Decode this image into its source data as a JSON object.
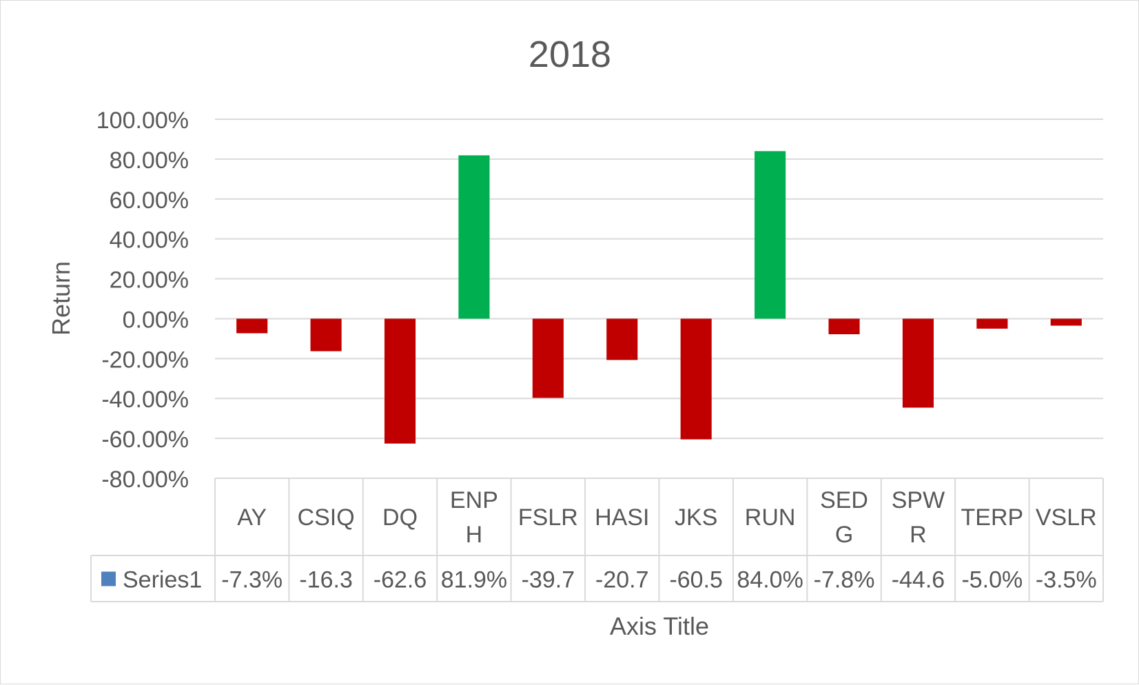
{
  "chart_data": {
    "type": "bar",
    "title": "2018",
    "ylabel": "Return",
    "xlabel": "Axis Title",
    "ylim": [
      -0.8,
      1.0
    ],
    "ytick_step": 0.2,
    "ytick_labels": [
      "100.00%",
      "80.00%",
      "60.00%",
      "40.00%",
      "20.00%",
      "0.00%",
      "-20.00%",
      "-40.00%",
      "-60.00%",
      "-80.00%"
    ],
    "grid": true,
    "categories": [
      "AY",
      "CSIQ",
      "DQ",
      "ENPH",
      "FSLR",
      "HASI",
      "JKS",
      "RUN",
      "SEDG",
      "SPWR",
      "TERP",
      "VSLR"
    ],
    "category_label_lines": [
      [
        "AY"
      ],
      [
        "CSIQ"
      ],
      [
        "DQ"
      ],
      [
        "ENP",
        "H"
      ],
      [
        "FSLR"
      ],
      [
        "HASI"
      ],
      [
        "JKS"
      ],
      [
        "RUN"
      ],
      [
        "SED",
        "G"
      ],
      [
        "SPW",
        "R"
      ],
      [
        "TERP"
      ],
      [
        "VSLR"
      ]
    ],
    "series": [
      {
        "name": "Series1",
        "values": [
          -0.073,
          -0.163,
          -0.626,
          0.819,
          -0.397,
          -0.207,
          -0.605,
          0.84,
          -0.078,
          -0.446,
          -0.05,
          -0.035
        ],
        "table_labels": [
          "-7.3%",
          "-16.3",
          "-62.6",
          "81.9%",
          "-39.7",
          "-20.7",
          "-60.5",
          "84.0%",
          "-7.8%",
          "-44.6",
          "-5.0%",
          "-3.5%"
        ]
      }
    ],
    "colors": {
      "positive": "#00b050",
      "negative": "#c00000",
      "legend_key": "#4f81bd",
      "grid": "#d9d9d9",
      "text": "#595959"
    },
    "data_table": true
  }
}
